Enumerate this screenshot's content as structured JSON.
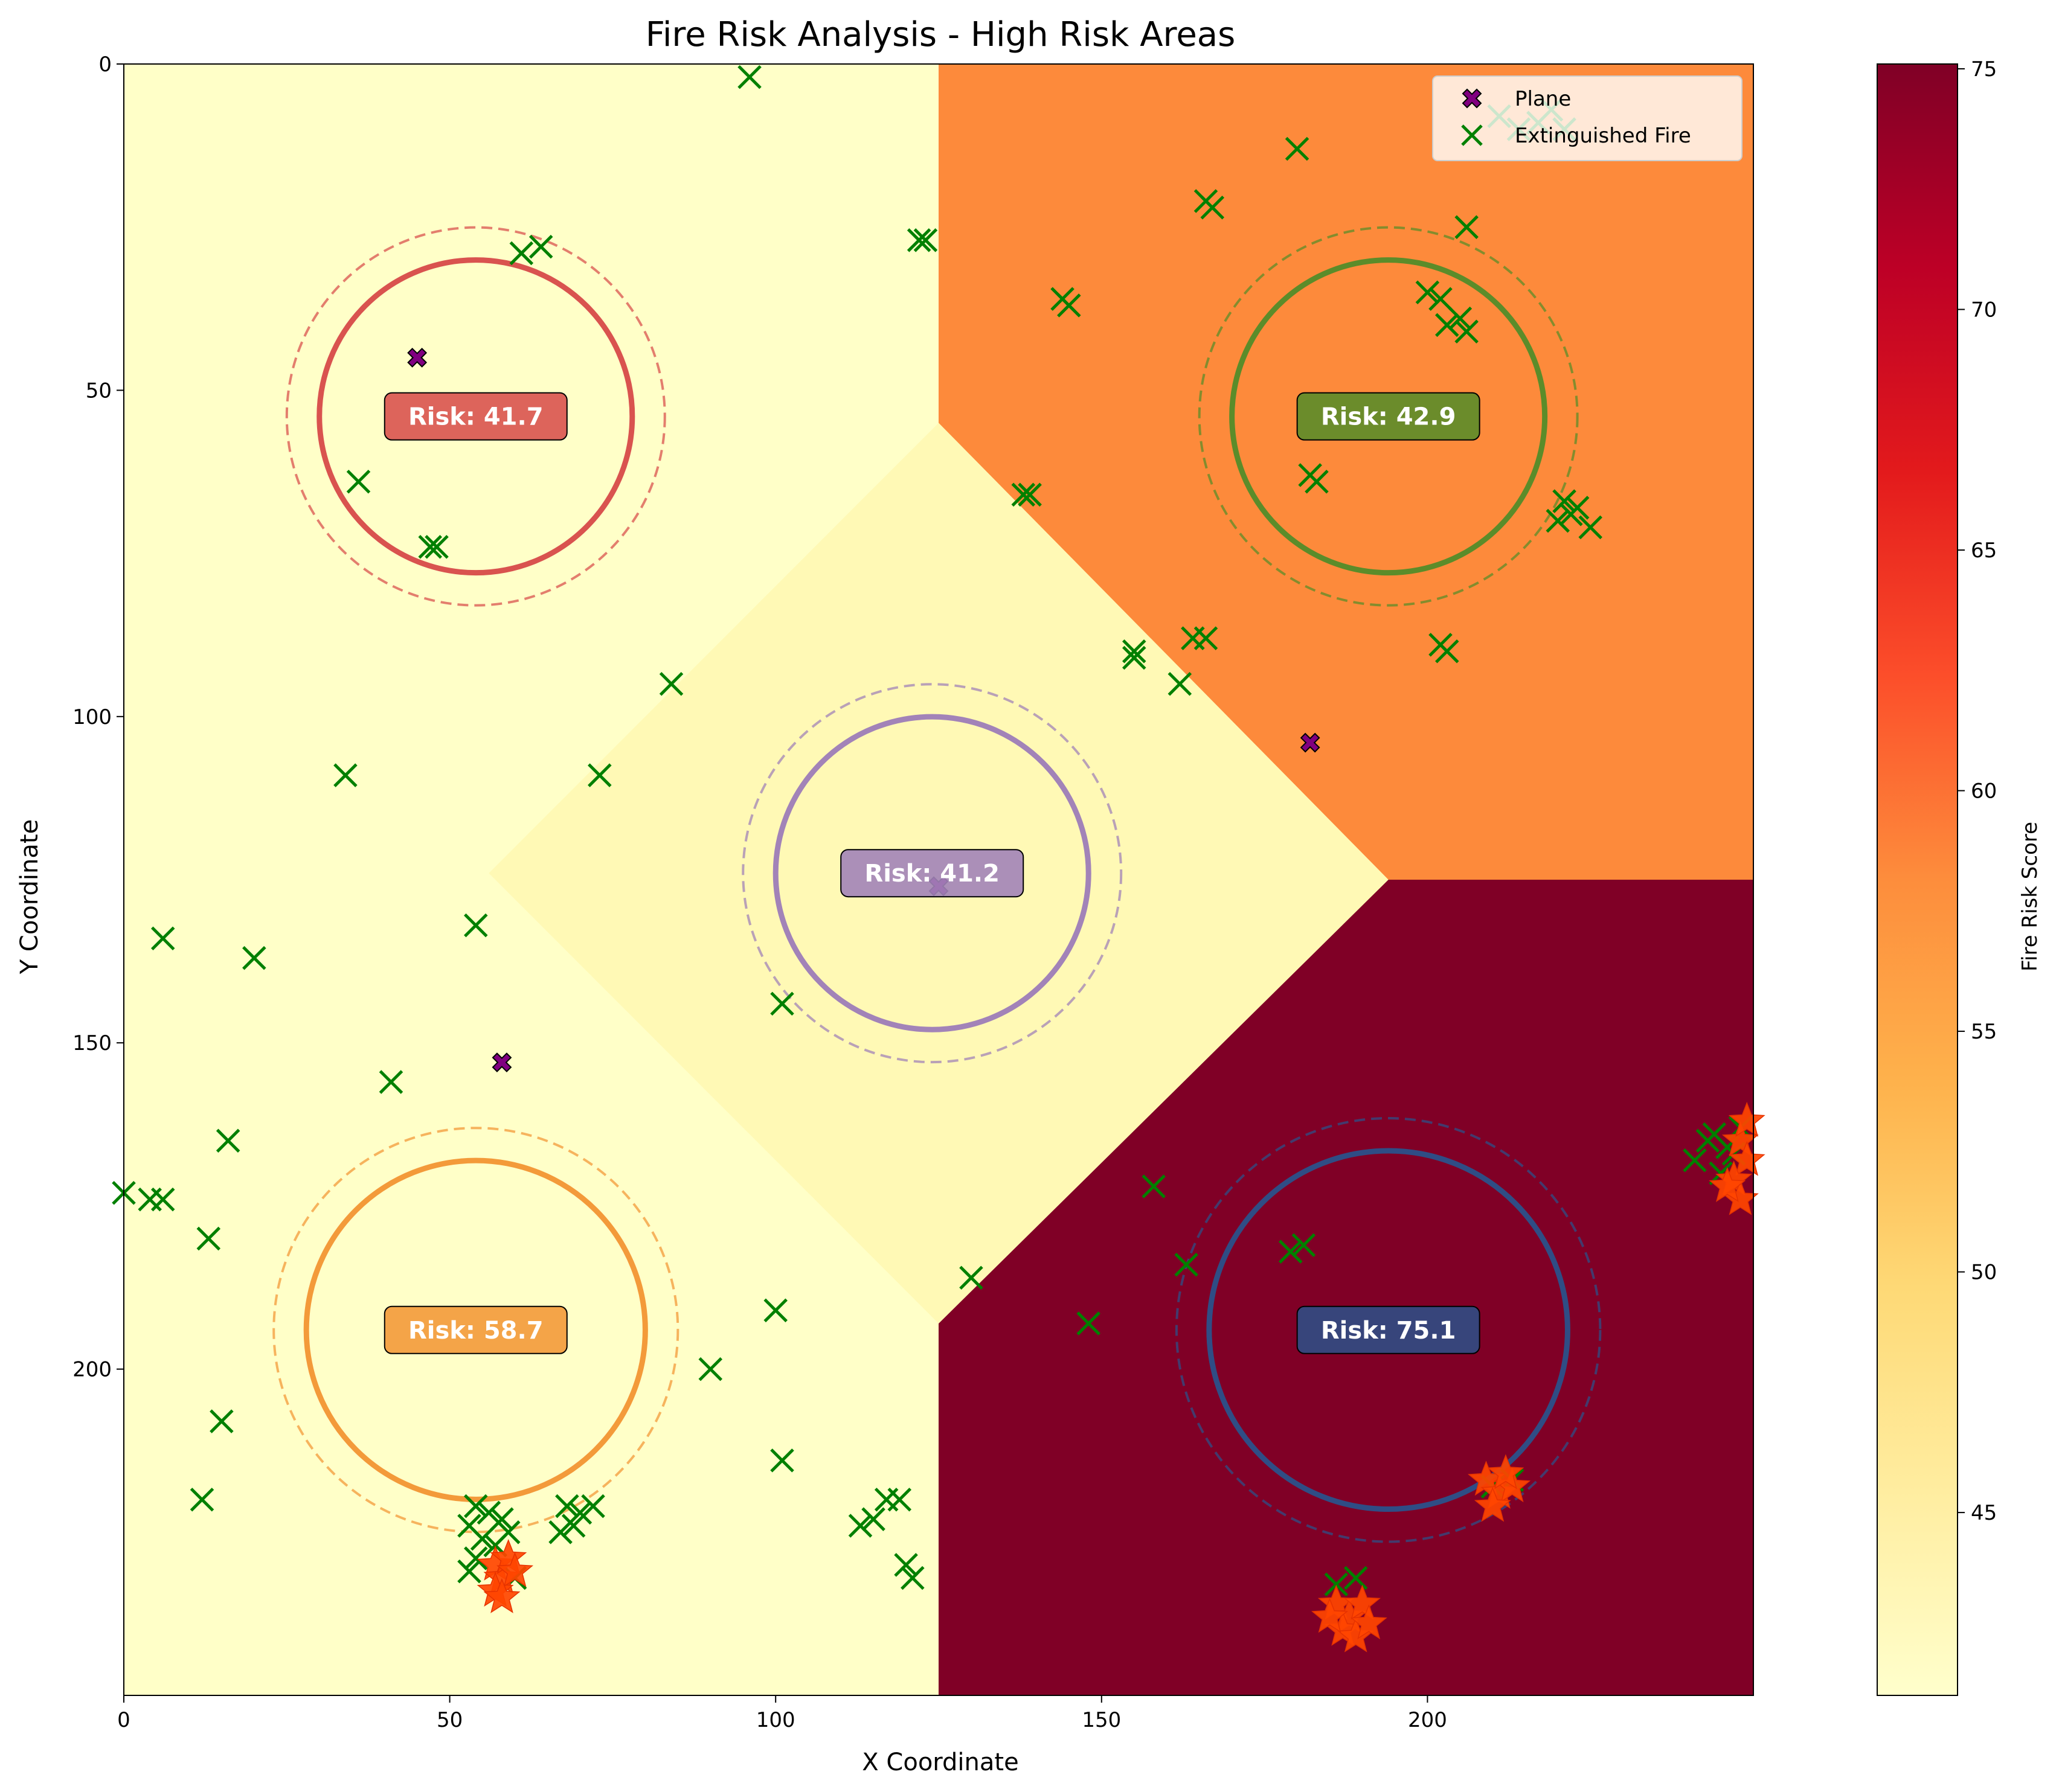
{
  "chart_data": {
    "type": "heatmap",
    "title": "Fire Risk Analysis - High Risk Areas",
    "xlabel": "X Coordinate",
    "ylabel": "Y Coordinate",
    "xlim": [
      0,
      250
    ],
    "ylim": [
      250,
      0
    ],
    "xticks": [
      0,
      50,
      100,
      150,
      200
    ],
    "yticks": [
      0,
      50,
      100,
      150,
      200
    ],
    "grid": false,
    "legend_placement": "top-right",
    "legend": [
      {
        "label": "Plane",
        "marker": "filled-x",
        "color": "#800080"
      },
      {
        "label": "Extinguished Fire",
        "marker": "x",
        "color": "#008000"
      }
    ],
    "colorbar": {
      "label": "Fire Risk Score",
      "range": [
        41.2,
        75.1
      ],
      "ticks": [
        45,
        50,
        55,
        60,
        65,
        70,
        75
      ],
      "cmap": "YlOrRd",
      "stops": [
        "#ffffcc",
        "#ffeda0",
        "#fed976",
        "#feb24c",
        "#fd8d3c",
        "#fc4e2a",
        "#e31a1c",
        "#bd0026",
        "#800026"
      ]
    },
    "regions": [
      {
        "name": "top-left",
        "risk": 41.7,
        "color": "#ffffc8"
      },
      {
        "name": "top-right",
        "risk": 42.9,
        "color": "#fd8a3b"
      },
      {
        "name": "center",
        "risk": 41.2,
        "color": "#fff9b5"
      },
      {
        "name": "bottom-left",
        "risk": 58.7,
        "color": "#ffffc8"
      },
      {
        "name": "bottom-right",
        "risk": 75.1,
        "color": "#800026"
      }
    ],
    "zones": [
      {
        "x": 54,
        "y": 54,
        "r": 24,
        "r_outer": 29,
        "risk": 41.7,
        "risk_label": "Risk: 41.7",
        "color": "#d9534f"
      },
      {
        "x": 194,
        "y": 54,
        "r": 24,
        "r_outer": 29,
        "risk": 42.9,
        "risk_label": "Risk: 42.9",
        "color": "#5b8c2a"
      },
      {
        "x": 124,
        "y": 124,
        "r": 24,
        "r_outer": 29,
        "risk": 41.2,
        "risk_label": "Risk: 41.2",
        "color": "#a283b8"
      },
      {
        "x": 54,
        "y": 194,
        "r": 26,
        "r_outer": 31,
        "risk": 58.7,
        "risk_label": "Risk: 58.7",
        "color": "#f39a3a"
      },
      {
        "x": 194,
        "y": 194,
        "r": 27.5,
        "r_outer": 32.5,
        "risk": 75.1,
        "risk_label": "Risk: 75.1",
        "color": "#2f4d85"
      }
    ],
    "planes": [
      {
        "x": 45,
        "y": 45
      },
      {
        "x": 182,
        "y": 104
      },
      {
        "x": 125,
        "y": 126
      },
      {
        "x": 58,
        "y": 153
      }
    ],
    "extinguished_fires": [
      {
        "x": 96,
        "y": 2
      },
      {
        "x": 180,
        "y": 13
      },
      {
        "x": 166,
        "y": 21
      },
      {
        "x": 167,
        "y": 22
      },
      {
        "x": 206,
        "y": 25
      },
      {
        "x": 122,
        "y": 27
      },
      {
        "x": 123,
        "y": 27
      },
      {
        "x": 61,
        "y": 29
      },
      {
        "x": 64,
        "y": 28
      },
      {
        "x": 144,
        "y": 36
      },
      {
        "x": 145,
        "y": 37
      },
      {
        "x": 200,
        "y": 35
      },
      {
        "x": 202,
        "y": 36
      },
      {
        "x": 203,
        "y": 40
      },
      {
        "x": 205,
        "y": 39
      },
      {
        "x": 206,
        "y": 41
      },
      {
        "x": 182,
        "y": 63
      },
      {
        "x": 183,
        "y": 64
      },
      {
        "x": 36,
        "y": 64
      },
      {
        "x": 47,
        "y": 74
      },
      {
        "x": 48,
        "y": 74
      },
      {
        "x": 138,
        "y": 66
      },
      {
        "x": 139,
        "y": 66
      },
      {
        "x": 221,
        "y": 67
      },
      {
        "x": 223,
        "y": 68
      },
      {
        "x": 220,
        "y": 70
      },
      {
        "x": 222,
        "y": 69
      },
      {
        "x": 225,
        "y": 71
      },
      {
        "x": 164,
        "y": 88
      },
      {
        "x": 166,
        "y": 88
      },
      {
        "x": 155,
        "y": 90
      },
      {
        "x": 155,
        "y": 91
      },
      {
        "x": 202,
        "y": 89
      },
      {
        "x": 203,
        "y": 90
      },
      {
        "x": 162,
        "y": 95
      },
      {
        "x": 84,
        "y": 95
      },
      {
        "x": 34,
        "y": 109
      },
      {
        "x": 73,
        "y": 109
      },
      {
        "x": 6,
        "y": 134
      },
      {
        "x": 20,
        "y": 137
      },
      {
        "x": 54,
        "y": 132
      },
      {
        "x": 101,
        "y": 144
      },
      {
        "x": 41,
        "y": 156
      },
      {
        "x": 16,
        "y": 165
      },
      {
        "x": 0,
        "y": 173
      },
      {
        "x": 4,
        "y": 174
      },
      {
        "x": 6,
        "y": 174
      },
      {
        "x": 13,
        "y": 180
      },
      {
        "x": 158,
        "y": 172
      },
      {
        "x": 163,
        "y": 184
      },
      {
        "x": 179,
        "y": 182
      },
      {
        "x": 181,
        "y": 181
      },
      {
        "x": 130,
        "y": 186
      },
      {
        "x": 100,
        "y": 191
      },
      {
        "x": 148,
        "y": 193
      },
      {
        "x": 90,
        "y": 200
      },
      {
        "x": 15,
        "y": 208
      },
      {
        "x": 101,
        "y": 214
      },
      {
        "x": 12,
        "y": 220
      },
      {
        "x": 117,
        "y": 220
      },
      {
        "x": 119,
        "y": 220
      },
      {
        "x": 113,
        "y": 224
      },
      {
        "x": 115,
        "y": 223
      },
      {
        "x": 120,
        "y": 230
      },
      {
        "x": 121,
        "y": 232
      },
      {
        "x": 54,
        "y": 221
      },
      {
        "x": 56,
        "y": 222
      },
      {
        "x": 58,
        "y": 223
      },
      {
        "x": 53,
        "y": 224
      },
      {
        "x": 55,
        "y": 226
      },
      {
        "x": 57,
        "y": 227
      },
      {
        "x": 59,
        "y": 225
      },
      {
        "x": 54,
        "y": 229
      },
      {
        "x": 60,
        "y": 232
      },
      {
        "x": 53,
        "y": 231
      },
      {
        "x": 68,
        "y": 221
      },
      {
        "x": 70,
        "y": 222
      },
      {
        "x": 72,
        "y": 221
      },
      {
        "x": 69,
        "y": 224
      },
      {
        "x": 67,
        "y": 225
      },
      {
        "x": 213,
        "y": 217
      },
      {
        "x": 210,
        "y": 218
      },
      {
        "x": 186,
        "y": 233
      },
      {
        "x": 189,
        "y": 232
      },
      {
        "x": 211,
        "y": 8
      },
      {
        "x": 214,
        "y": 10
      },
      {
        "x": 217,
        "y": 9
      },
      {
        "x": 219,
        "y": 7
      },
      {
        "x": 221,
        "y": 10
      },
      {
        "x": 244,
        "y": 164
      },
      {
        "x": 246,
        "y": 166
      },
      {
        "x": 248,
        "y": 163
      },
      {
        "x": 241,
        "y": 168
      },
      {
        "x": 245,
        "y": 170
      },
      {
        "x": 247,
        "y": 167
      },
      {
        "x": 243,
        "y": 165
      }
    ],
    "active_fires": [
      {
        "x": 57,
        "y": 230
      },
      {
        "x": 58,
        "y": 232
      },
      {
        "x": 59,
        "y": 229
      },
      {
        "x": 57,
        "y": 234
      },
      {
        "x": 60,
        "y": 231
      },
      {
        "x": 58,
        "y": 235
      },
      {
        "x": 209,
        "y": 217
      },
      {
        "x": 211,
        "y": 219
      },
      {
        "x": 213,
        "y": 218
      },
      {
        "x": 210,
        "y": 221
      },
      {
        "x": 212,
        "y": 216
      },
      {
        "x": 186,
        "y": 236
      },
      {
        "x": 188,
        "y": 238
      },
      {
        "x": 190,
        "y": 236
      },
      {
        "x": 187,
        "y": 240
      },
      {
        "x": 189,
        "y": 241
      },
      {
        "x": 191,
        "y": 239
      },
      {
        "x": 185,
        "y": 238
      },
      {
        "x": 248,
        "y": 165
      },
      {
        "x": 249,
        "y": 168
      },
      {
        "x": 247,
        "y": 171
      },
      {
        "x": 248,
        "y": 174
      },
      {
        "x": 246,
        "y": 172
      },
      {
        "x": 249,
        "y": 162
      }
    ]
  }
}
